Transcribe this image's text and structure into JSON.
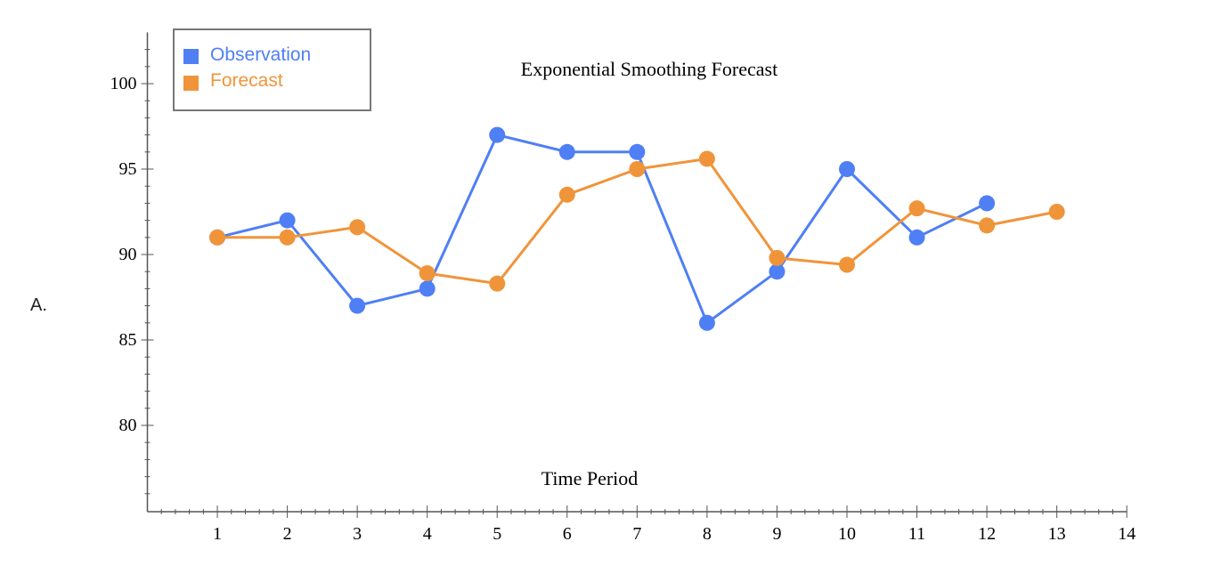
{
  "question_label": "A.",
  "chart_data": {
    "type": "line",
    "title": "Exponential Smoothing Forecast",
    "xlabel": "Time Period",
    "ylabel": "",
    "xlim": [
      0,
      14
    ],
    "ylim": [
      75,
      103
    ],
    "x_ticks": [
      1,
      2,
      3,
      4,
      5,
      6,
      7,
      8,
      9,
      10,
      11,
      12,
      13,
      14
    ],
    "y_ticks": [
      80,
      85,
      90,
      95,
      100
    ],
    "grid": false,
    "legend_position": "top-left",
    "series": [
      {
        "name": "Observation",
        "color": "#4f7ff5",
        "x": [
          1,
          2,
          3,
          4,
          5,
          6,
          7,
          8,
          9,
          10,
          11,
          12
        ],
        "values": [
          91,
          92,
          87,
          88,
          97,
          96,
          96,
          86,
          89,
          95,
          91,
          93
        ]
      },
      {
        "name": "Forecast",
        "color": "#f0943a",
        "x": [
          1,
          2,
          3,
          4,
          5,
          6,
          7,
          8,
          9,
          10,
          11,
          12,
          13
        ],
        "values": [
          91,
          91,
          91.6,
          88.9,
          88.3,
          93.5,
          95,
          95.6,
          89.8,
          89.4,
          92.7,
          91.7,
          92.5
        ]
      }
    ]
  }
}
